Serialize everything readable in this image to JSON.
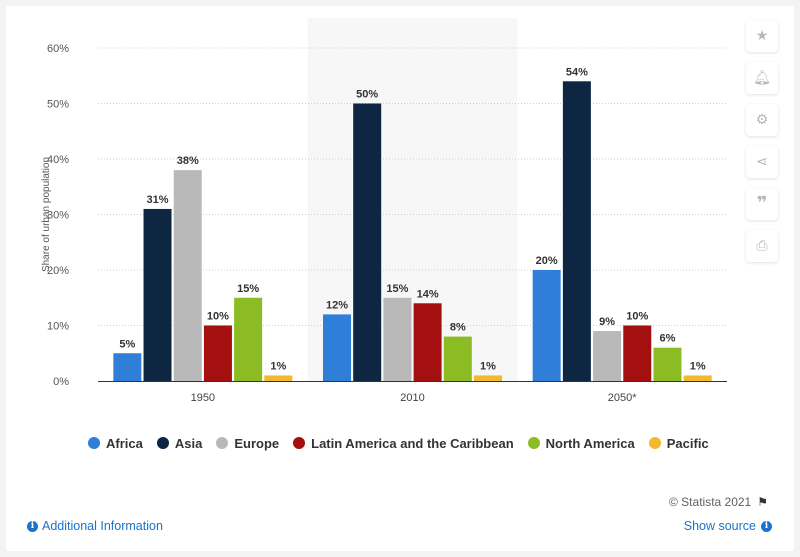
{
  "chart_data": {
    "type": "bar",
    "categories": [
      "1950",
      "2010",
      "2050*"
    ],
    "series": [
      {
        "name": "Africa",
        "color": "#2f7ed8",
        "values": [
          5,
          12,
          20
        ]
      },
      {
        "name": "Asia",
        "color": "#0d2641",
        "values": [
          31,
          50,
          54
        ]
      },
      {
        "name": "Europe",
        "color": "#b9b9b9",
        "values": [
          38,
          15,
          9
        ]
      },
      {
        "name": "Latin America and the Caribbean",
        "color": "#a40f0f",
        "values": [
          10,
          14,
          10
        ]
      },
      {
        "name": "North America",
        "color": "#8cbc24",
        "values": [
          15,
          8,
          6
        ]
      },
      {
        "name": "Pacific",
        "color": "#f2b82e",
        "values": [
          1,
          1,
          1
        ]
      }
    ],
    "ylabel": "Share of urban population",
    "xlabel": "",
    "ylim": [
      0,
      60
    ],
    "yticks": [
      0,
      10,
      20,
      30,
      40,
      50,
      60
    ],
    "value_suffix": "%",
    "highlight_category": "2010",
    "grid": true,
    "legend_position": "bottom"
  },
  "credit": "© Statista 2021",
  "footer": {
    "additional_info": "Additional Information",
    "show_source": "Show source"
  },
  "toolbar_icons": [
    "star-icon",
    "bell-icon",
    "gear-icon",
    "share-icon",
    "quote-icon",
    "print-icon"
  ]
}
